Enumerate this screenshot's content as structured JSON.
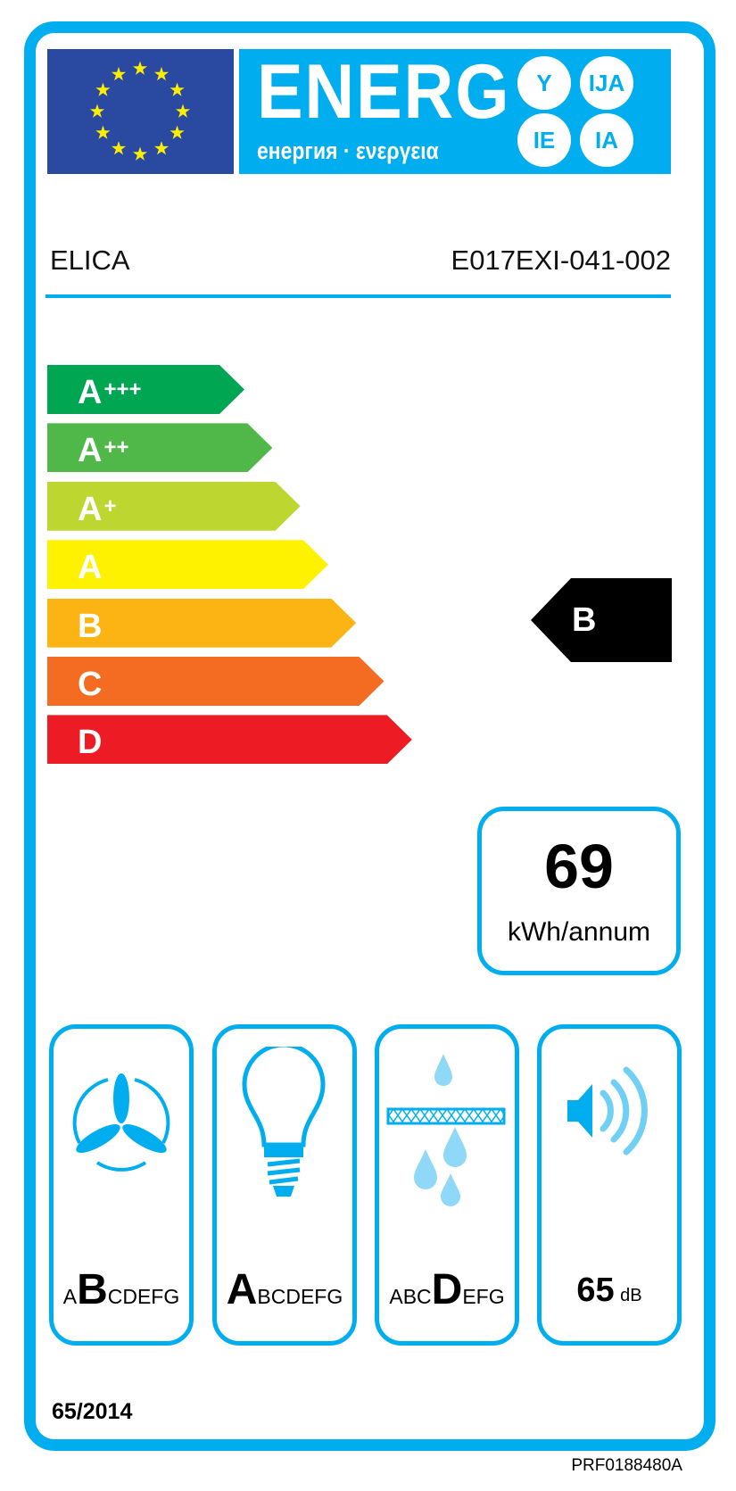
{
  "header": {
    "energ": "ENERG",
    "subtitle": "енергия · ενεργεια",
    "suffixes": [
      "Y",
      "IJA",
      "IE",
      "IA"
    ],
    "flag_colors": {
      "blue": "#2a49a0",
      "stars": "#ffed00"
    },
    "accent": "#00aeef"
  },
  "supplier": "ELICA",
  "model": "E017EXI-041-002",
  "scale": [
    {
      "base": "A",
      "plus": "+++",
      "color": "#00a651"
    },
    {
      "base": "A",
      "plus": "++",
      "color": "#50b848"
    },
    {
      "base": "A",
      "plus": "+",
      "color": "#bed630"
    },
    {
      "base": "A",
      "plus": "",
      "color": "#fff200"
    },
    {
      "base": "B",
      "plus": "",
      "color": "#fcb415"
    },
    {
      "base": "C",
      "plus": "",
      "color": "#f36c21"
    },
    {
      "base": "D",
      "plus": "",
      "color": "#ed1c24"
    }
  ],
  "rating": "B",
  "consumption": {
    "value": "69",
    "unit": "kWh/annum"
  },
  "panels": [
    {
      "icon": "fan-icon",
      "pre": "A",
      "grade": "B",
      "post": "CDEFG"
    },
    {
      "icon": "light-bulb-icon",
      "pre": "",
      "grade": "A",
      "post": "BCDEFG"
    },
    {
      "icon": "grease-filter-icon",
      "pre": "ABC",
      "grade": "D",
      "post": "EFG"
    },
    {
      "icon": "speaker-icon",
      "noise_value": "65",
      "noise_unit": "dB"
    }
  ],
  "regulation": "65/2014",
  "label_code": "PRF0188480A"
}
